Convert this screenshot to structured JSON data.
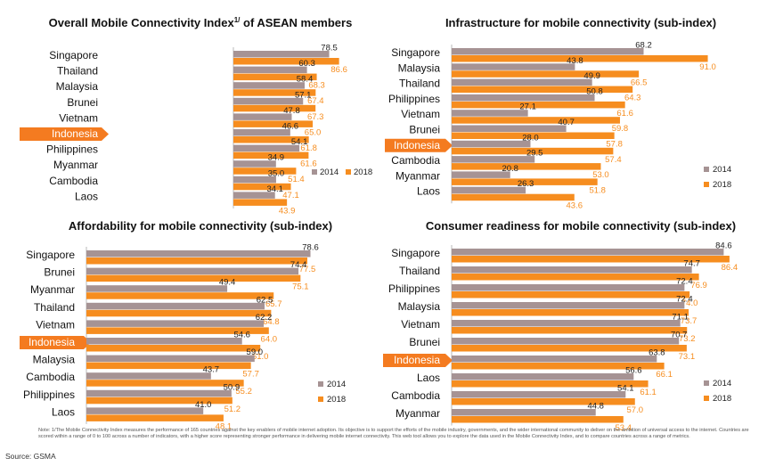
{
  "colors": {
    "y2014": "#a69394",
    "y2018": "#f68d1f",
    "highlight": "#f47b20",
    "highlight_text": "#ffffff"
  },
  "legend": {
    "a": "2014",
    "b": "2018"
  },
  "chart_data": [
    {
      "type": "bar",
      "title": "Overall Mobile Connectivity Index",
      "title_sup": "1/",
      "title_suffix": " of ASEAN members",
      "categories": [
        "Singapore",
        "Thailand",
        "Malaysia",
        "Brunei",
        "Vietnam",
        "Indonesia",
        "Philippines",
        "Myanmar",
        "Cambodia",
        "Laos"
      ],
      "highlight": "Indonesia",
      "series": [
        {
          "name": "2014",
          "values": [
            78.5,
            60.3,
            58.4,
            57.1,
            47.8,
            46.6,
            54.1,
            34.9,
            35.0,
            34.1
          ]
        },
        {
          "name": "2018",
          "values": [
            86.6,
            68.3,
            67.4,
            67.3,
            65.0,
            61.8,
            61.6,
            51.4,
            47.1,
            43.9
          ]
        }
      ],
      "labels": {
        "2014": [
          "78.5",
          "60.3",
          "58.4",
          "57.1",
          "47.8",
          "46.6",
          "54.1",
          "34.9",
          "35.0",
          "34.1"
        ],
        "2018": [
          "86.6",
          "68.3",
          "67.4",
          "67.3",
          "65.0",
          "61.8",
          "61.6",
          "51.4",
          "47.1",
          "43.9"
        ]
      },
      "xlim": [
        0,
        100
      ],
      "legend_position": "bottom-right-inline"
    },
    {
      "type": "bar",
      "title": "Infrastructure for mobile connectivity (sub-index)",
      "categories": [
        "Singapore",
        "Malaysia",
        "Thailand",
        "Philippines",
        "Vietnam",
        "Brunei",
        "Indonesia",
        "Cambodia",
        "Myanmar",
        "Laos"
      ],
      "highlight": "Indonesia",
      "series": [
        {
          "name": "2014",
          "values": [
            68.2,
            43.8,
            49.9,
            50.8,
            27.1,
            40.7,
            28.0,
            29.5,
            20.8,
            26.3
          ]
        },
        {
          "name": "2018",
          "values": [
            91.0,
            66.5,
            64.3,
            61.6,
            59.8,
            57.8,
            57.4,
            53.0,
            51.8,
            43.6
          ]
        }
      ],
      "labels": {
        "2014": [
          "68.2",
          "43.8",
          "49.9",
          "50.8",
          "27.1",
          "40.7",
          "28.0",
          "29.5",
          "20.8",
          "26.3"
        ],
        "2018": [
          "91.0",
          "66.5",
          "64.3",
          "61.6",
          "59.8",
          "57.8",
          "57.4",
          "53.0",
          "51.8",
          "43.6"
        ]
      },
      "xlim": [
        0,
        100
      ],
      "legend_position": "bottom-right-stacked"
    },
    {
      "type": "bar",
      "title": "Affordability for mobile connectivity (sub-index)",
      "categories": [
        "Singapore",
        "Brunei",
        "Myanmar",
        "Thailand",
        "Vietnam",
        "Indonesia",
        "Malaysia",
        "Cambodia",
        "Philippines",
        "Laos"
      ],
      "highlight": "Indonesia",
      "series": [
        {
          "name": "2014",
          "values": [
            78.6,
            74.4,
            49.4,
            62.5,
            62.2,
            54.6,
            59.0,
            43.7,
            50.9,
            41.0
          ]
        },
        {
          "name": "2018",
          "values": [
            77.5,
            75.1,
            65.7,
            64.8,
            64.0,
            61.0,
            57.7,
            55.2,
            51.2,
            48.1
          ]
        }
      ],
      "labels": {
        "2014": [
          "78.6",
          "74.4",
          "49.4",
          "62.5",
          "62.2",
          "54.6",
          "59.0",
          "43.7",
          "50.9",
          "41.0"
        ],
        "2018": [
          "77.5",
          "75.1",
          "65.7",
          "64.8",
          "64.0",
          "61.0",
          "57.7",
          "55.2",
          "51.2",
          "48.1"
        ]
      },
      "xlim": [
        0,
        100
      ],
      "legend_position": "bottom-right-stacked"
    },
    {
      "type": "bar",
      "title": "Consumer readiness for mobile connectivity (sub-index)",
      "categories": [
        "Singapore",
        "Thailand",
        "Philippines",
        "Malaysia",
        "Vietnam",
        "Brunei",
        "Indonesia",
        "Laos",
        "Cambodia",
        "Myanmar"
      ],
      "highlight": "Indonesia",
      "series": [
        {
          "name": "2014",
          "values": [
            84.6,
            74.7,
            72.4,
            72.4,
            71.1,
            70.7,
            63.8,
            56.6,
            54.1,
            44.8
          ]
        },
        {
          "name": "2018",
          "values": [
            86.4,
            76.9,
            74.0,
            73.7,
            73.2,
            73.1,
            66.1,
            61.1,
            57.0,
            53.4
          ]
        }
      ],
      "labels": {
        "2014": [
          "84.6",
          "74.7",
          "72.4",
          "72.4",
          "71.1",
          "70.7",
          "63.8",
          "56.6",
          "54.1",
          "44.8"
        ],
        "2018": [
          "86.4",
          "76.9",
          "74.0",
          "73.7",
          "73.2",
          "73.1",
          "66.1",
          "61.1",
          "57.0",
          "53.4"
        ]
      },
      "xlim": [
        0,
        100
      ],
      "legend_position": "bottom-right-stacked"
    }
  ],
  "footer": {
    "note": "Note: 1/The Mobile Connectivity Index measures the performance of 165 countries against the key enablers of mobile internet adoption. Its objective is to support the efforts of the mobile industry, governments, and the wider international community to deliver on the ambition of universal access to the internet. Countries are scored within a range of 0 to 100 across a number of indicators, with a higher score representing stronger performance in delivering mobile internet connectivity. This web tool allows you to explore the data used in the Mobile Connectivity Index, and to compare countries across a range of metrics.",
    "source": "Source: GSMA"
  }
}
